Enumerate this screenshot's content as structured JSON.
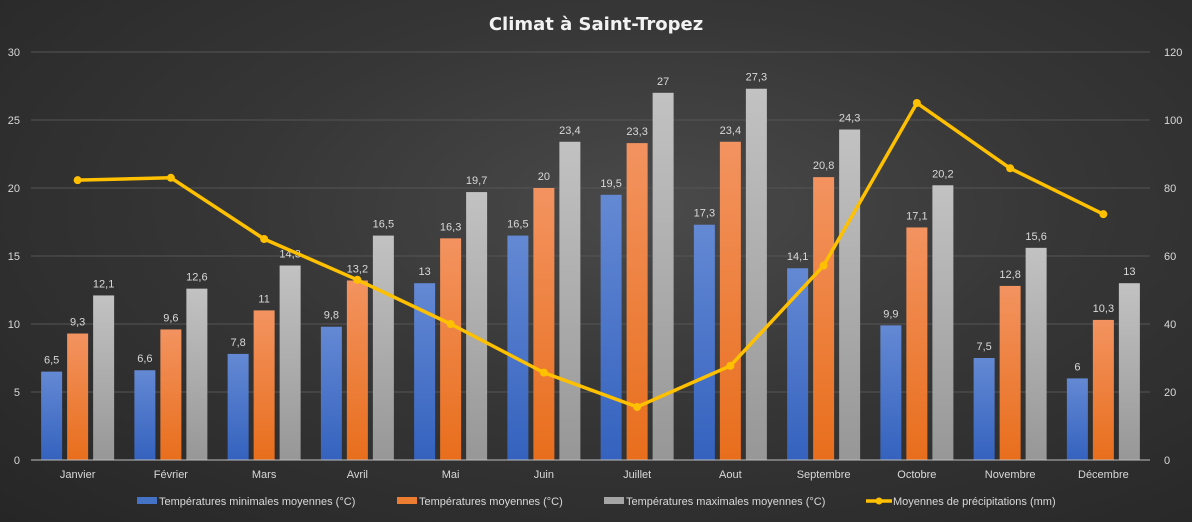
{
  "chart_data": {
    "type": "bar+line",
    "title": "Climat à Saint-Tropez",
    "categories": [
      "Janvier",
      "Février",
      "Mars",
      "Avril",
      "Mai",
      "Juin",
      "Juillet",
      "Aout",
      "Septembre",
      "Octobre",
      "Novembre",
      "Décembre"
    ],
    "y_left": {
      "range": [
        0,
        30
      ],
      "ticks": [
        0,
        5,
        10,
        15,
        20,
        25,
        30
      ]
    },
    "y_right": {
      "range": [
        0,
        120
      ],
      "ticks": [
        0,
        20,
        40,
        60,
        80,
        100,
        120
      ]
    },
    "grid": true,
    "legend_position": "bottom",
    "series": [
      {
        "name": "Températures minimales moyennes (°C)",
        "type": "bar",
        "axis": "left",
        "color": "#4472c4",
        "values": [
          6.5,
          6.6,
          7.8,
          9.8,
          13,
          16.5,
          19.5,
          17.3,
          14.1,
          9.9,
          7.5,
          6
        ],
        "labels": [
          "6,5",
          "6,6",
          "7,8",
          "9,8",
          "13",
          "16,5",
          "19,5",
          "17,3",
          "14,1",
          "9,9",
          "7,5",
          "6"
        ]
      },
      {
        "name": "Températures moyennes (°C)",
        "type": "bar",
        "axis": "left",
        "color": "#ed7d31",
        "values": [
          9.3,
          9.6,
          11,
          13.2,
          16.3,
          20,
          23.3,
          23.4,
          20.8,
          17.1,
          12.8,
          10.3
        ],
        "labels": [
          "9,3",
          "9,6",
          "11",
          "13,2",
          "16,3",
          "20",
          "23,3",
          "23,4",
          "20,8",
          "17,1",
          "12,8",
          "10,3"
        ]
      },
      {
        "name": "Températures maximales moyennes (°C)",
        "type": "bar",
        "axis": "left",
        "color": "#a5a5a5",
        "values": [
          12.1,
          12.6,
          14.3,
          16.5,
          19.7,
          23.4,
          27,
          27.3,
          24.3,
          20.2,
          15.6,
          13
        ],
        "labels": [
          "12,1",
          "12,6",
          "14,3",
          "16,5",
          "19,7",
          "23,4",
          "27",
          "27,3",
          "24,3",
          "20,2",
          "15,6",
          "13"
        ]
      },
      {
        "name": "Moyennes de précipitations (mm)",
        "type": "line",
        "axis": "right",
        "color": "#ffc000",
        "values": [
          82.3,
          83,
          65,
          53,
          40,
          25.7,
          15.6,
          27.7,
          57.2,
          105,
          85.8,
          72.3
        ]
      }
    ]
  }
}
